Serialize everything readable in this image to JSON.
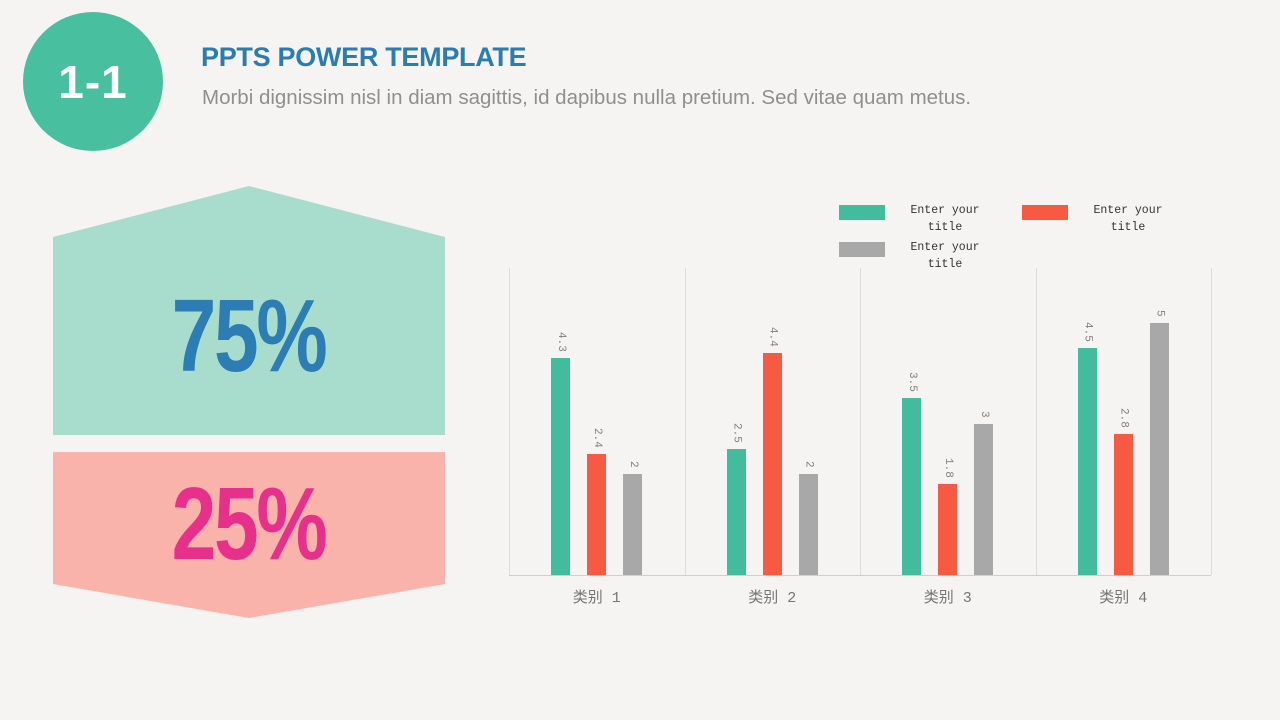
{
  "header": {
    "badge": "1-1",
    "title": "PPTS POWER TEMPLATE",
    "subtitle": "Morbi dignissim nisl in diam sagittis, id dapibus nulla pretium. Sed vitae quam metus."
  },
  "infographic": {
    "top_percent": "75%",
    "bottom_percent": "25%",
    "top_shape_color": "#a8ddce",
    "top_text_color": "#2b7db3",
    "bottom_shape_color": "#f9b3ab",
    "bottom_text_color": "#e6308c"
  },
  "colors": {
    "background": "#f5f4f2",
    "badge": "#48bf9e",
    "title": "#2a7cb1",
    "subtitle": "#8f8f8f",
    "gridline": "#dcdcdc",
    "axis_line": "#cfcfcf",
    "data_label": "#7f7f7f",
    "category_label": "#757575"
  },
  "chart_data": {
    "type": "bar",
    "categories": [
      "类别 1",
      "类别 2",
      "类别 3",
      "类别 4"
    ],
    "series": [
      {
        "name": "Enter your title",
        "color": "#41bd9d",
        "values": [
          4.3,
          2.5,
          3.5,
          4.5
        ]
      },
      {
        "name": "Enter your title",
        "color": "#f65a43",
        "values": [
          2.4,
          4.4,
          1.8,
          2.8
        ]
      },
      {
        "name": "Enter your title",
        "color": "#a8a8a8",
        "values": [
          2.0,
          2.0,
          3.0,
          5.0
        ]
      }
    ],
    "title": "",
    "xlabel": "",
    "ylabel": "",
    "ylim": [
      0,
      6.08
    ],
    "data_labels": true,
    "data_label_rotation": 90,
    "grid": "vertical-category-separators",
    "legend_position": "top-right"
  }
}
